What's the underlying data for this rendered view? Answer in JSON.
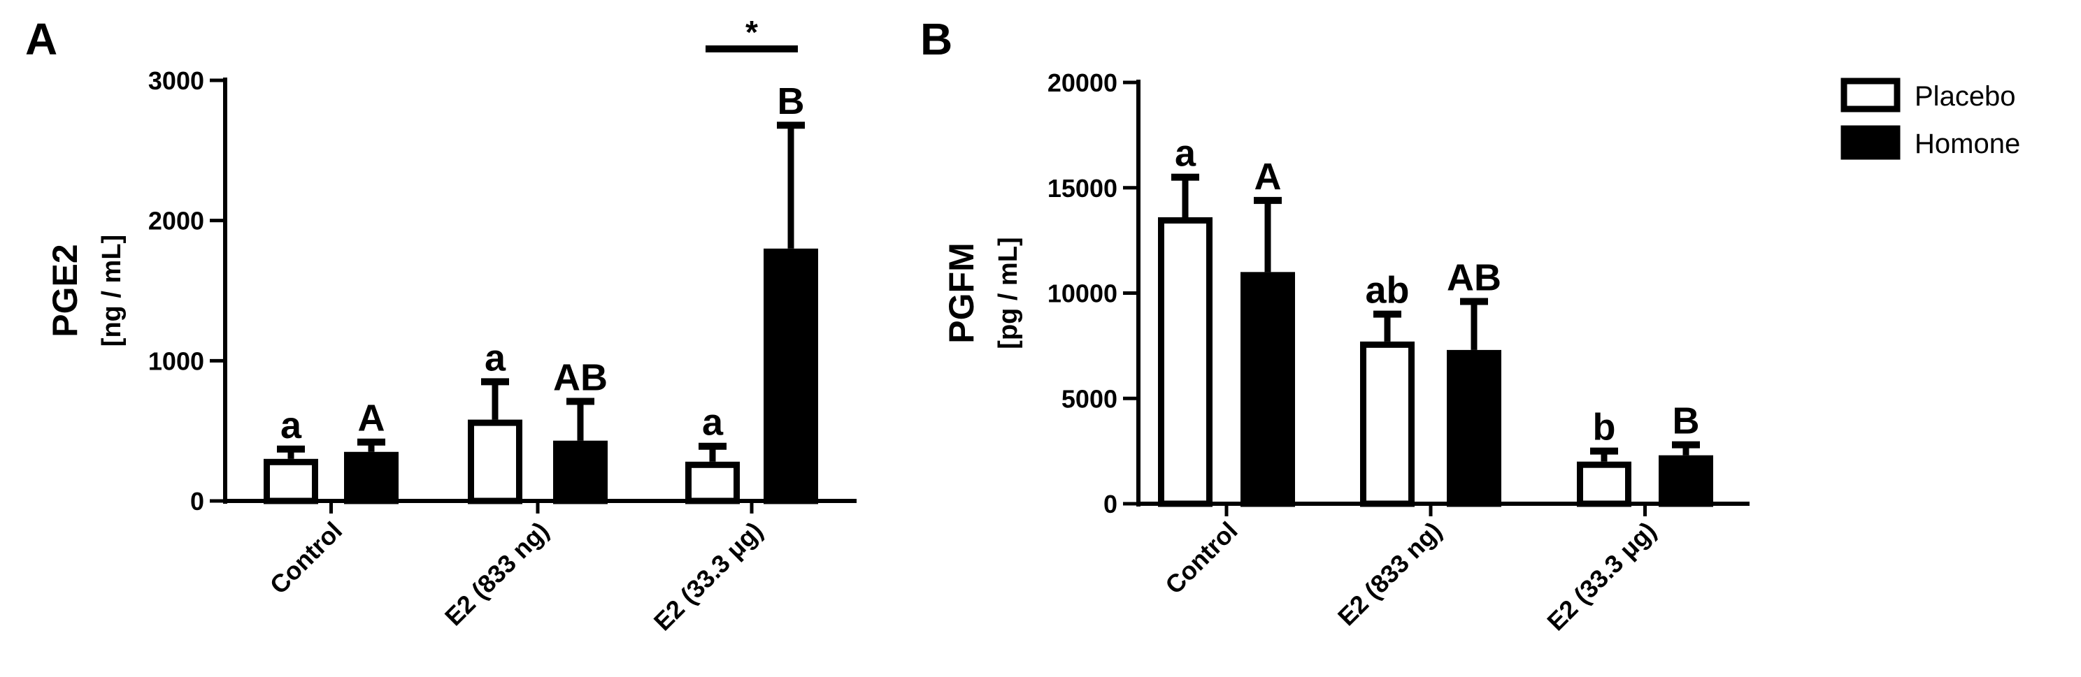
{
  "legend": {
    "items": [
      {
        "name": "Placebo",
        "fill": "#ffffff"
      },
      {
        "name": "Homone",
        "fill": "#000000"
      }
    ]
  },
  "colors": {
    "axis": "#000000",
    "placebo": "#ffffff",
    "hormone": "#000000"
  },
  "chart_data": [
    {
      "type": "bar",
      "panel": "A",
      "ylabel": "PGE2",
      "yunit": "[ng / mL]",
      "ylim": [
        0,
        3000
      ],
      "yticks": [
        0,
        1000,
        2000,
        3000
      ],
      "ytick_labels": [
        "0",
        "1000",
        "2000",
        "3000"
      ],
      "categories": [
        "Control",
        "E2 (833 ng)",
        "E2 (33.3 μg)"
      ],
      "series": [
        {
          "name": "Placebo",
          "values": [
            300,
            580,
            280
          ],
          "errors": [
            70,
            270,
            110
          ],
          "letters": [
            "a",
            "a",
            "a"
          ]
        },
        {
          "name": "Homone",
          "values": [
            350,
            430,
            1800
          ],
          "errors": [
            70,
            280,
            880
          ],
          "letters": [
            "A",
            "AB",
            "B"
          ]
        }
      ],
      "significance": {
        "category_index": 2,
        "label": "*"
      },
      "grid": false,
      "legend": "none"
    },
    {
      "type": "bar",
      "panel": "B",
      "ylabel": "PGFM",
      "yunit": "[pg / mL]",
      "ylim": [
        0,
        20000
      ],
      "yticks": [
        0,
        5000,
        10000,
        15000,
        20000
      ],
      "ytick_labels": [
        "0",
        "5000",
        "10000",
        "15000",
        "20000"
      ],
      "categories": [
        "Control",
        "E2 (833 ng)",
        "E2 (33.3 μg)"
      ],
      "series": [
        {
          "name": "Placebo",
          "values": [
            13600,
            7700,
            2000
          ],
          "errors": [
            1900,
            1300,
            500
          ],
          "letters": [
            "a",
            "ab",
            "b"
          ]
        },
        {
          "name": "Homone",
          "values": [
            11000,
            7300,
            2300
          ],
          "errors": [
            3400,
            2300,
            500
          ],
          "letters": [
            "A",
            "AB",
            "B"
          ]
        }
      ],
      "grid": false,
      "legend": "top-right"
    }
  ]
}
